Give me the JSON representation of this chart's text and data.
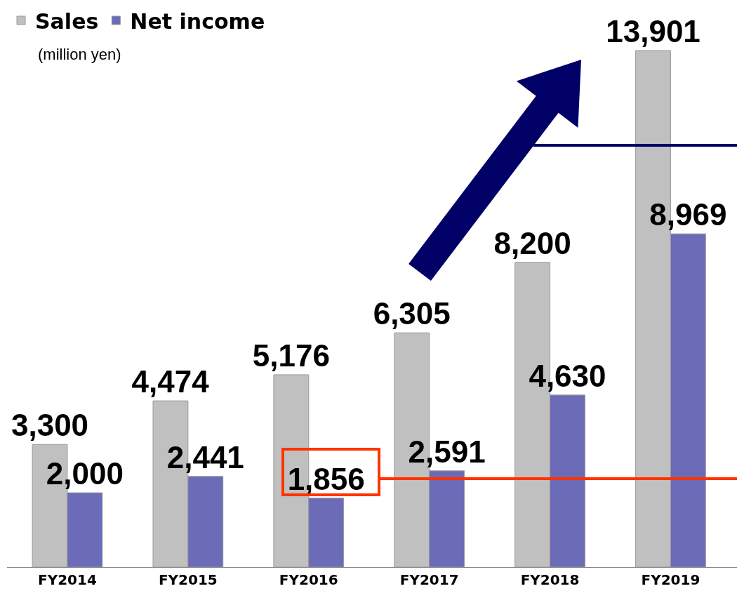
{
  "chart_data": {
    "type": "bar",
    "categories": [
      "FY2014",
      "FY2015",
      "FY2016",
      "FY2017",
      "FY2018",
      "FY2019"
    ],
    "series": [
      {
        "name": "Sales",
        "color": "#c0c0c0",
        "values": [
          3300,
          4474,
          5176,
          6305,
          8200,
          13901
        ],
        "value_labels": [
          "3,300",
          "4,474",
          "5,176",
          "6,305",
          "8,200",
          "13,901"
        ]
      },
      {
        "name": "Net income",
        "color": "#6b6bb8",
        "values": [
          2000,
          2441,
          1856,
          2591,
          4630,
          8969
        ],
        "value_labels": [
          "2,000",
          "2,441",
          "1,856",
          "2,591",
          "4,630",
          "8,969"
        ]
      }
    ],
    "legend": "top left",
    "annotations": [
      "(million yen)"
    ]
  }
}
